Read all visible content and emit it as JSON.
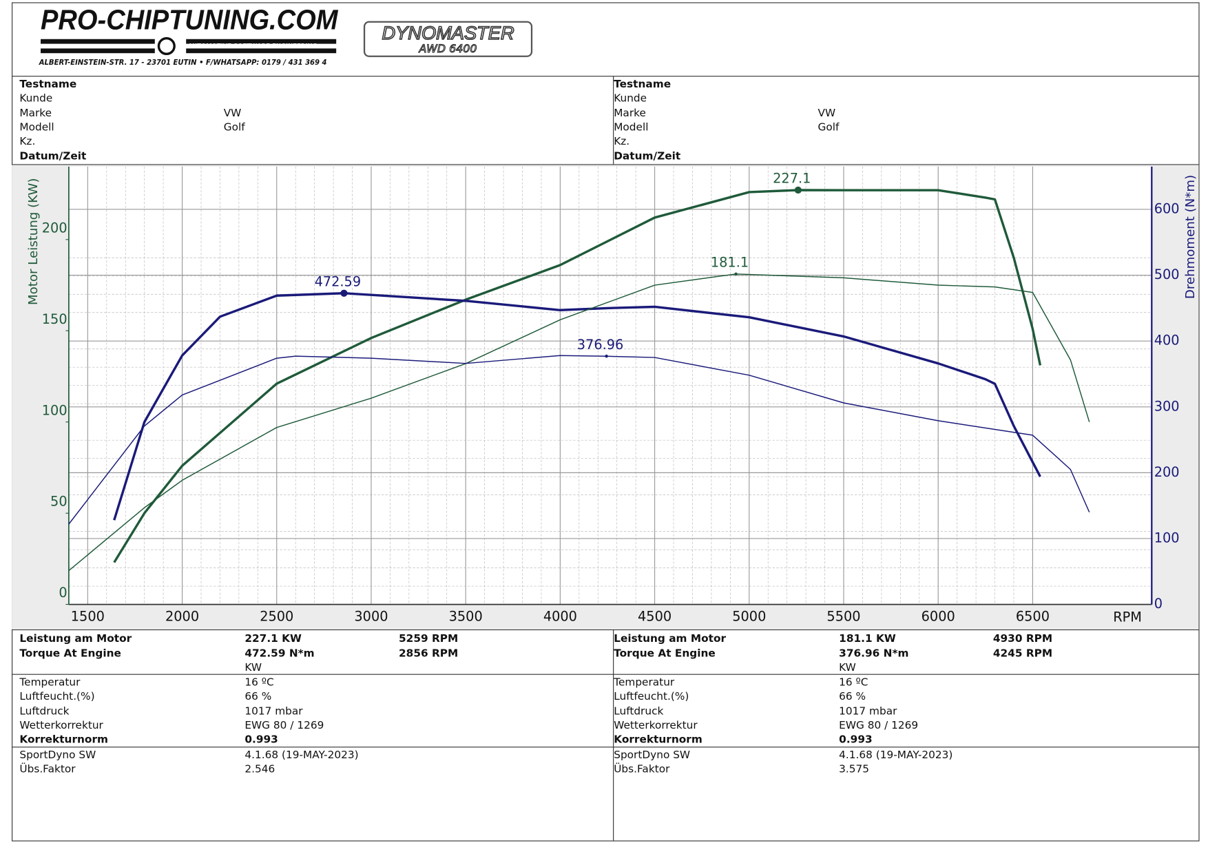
{
  "header": {
    "logo": "PRO-CHIPTUNING.COM",
    "tagline": "AUTOMOTIVE SOFTWARE ENGINEERING",
    "address": "ALBERT-EINSTEIN-STR. 17 - 23701 EUTIN • F/WHATSAPP: 0179 / 431 369 4",
    "brand": "DYNOMASTER",
    "model": "AWD 6400"
  },
  "runs": [
    {
      "info": [
        {
          "label": "Testname"
        },
        {
          "label": "Kunde"
        },
        {
          "label": "Marke",
          "value": "VW"
        },
        {
          "label": "Modell",
          "value": "Golf"
        },
        {
          "label": "Kz."
        },
        {
          "label": "Datum/Zeit"
        }
      ],
      "results": [
        {
          "label": "Leistung am Motor",
          "value": "227.1 KW",
          "rpm": "5259 RPM"
        },
        {
          "label": "Torque At Engine",
          "value": "472.59 N*m",
          "rpm": "2856 RPM"
        },
        {
          "value": "KW"
        }
      ],
      "conditions": [
        {
          "label": "Temperatur",
          "value": "16 ºC"
        },
        {
          "label": "Luftfeucht.(%)",
          "value": "66 %"
        },
        {
          "label": "Luftdruck",
          "value": "1017 mbar"
        },
        {
          "label": "Wetterkorrektur",
          "value": "EWG 80 / 1269"
        },
        {
          "label": "Korrekturnorm",
          "value": "0.993"
        }
      ],
      "software": [
        {
          "label": "SportDyno SW",
          "value": "4.1.68 (19-MAY-2023)"
        },
        {
          "label": "Übs.Faktor",
          "value": "2.546"
        }
      ]
    },
    {
      "info": [
        {
          "label": "Testname"
        },
        {
          "label": "Kunde"
        },
        {
          "label": "Marke",
          "value": "VW"
        },
        {
          "label": "Modell",
          "value": "Golf"
        },
        {
          "label": "Kz."
        },
        {
          "label": "Datum/Zeit"
        }
      ],
      "results": [
        {
          "label": "Leistung am Motor",
          "value": "181.1 KW",
          "rpm": "4930 RPM"
        },
        {
          "label": "Torque At Engine",
          "value": "376.96 N*m",
          "rpm": "4245 RPM"
        },
        {
          "value": "KW"
        }
      ],
      "conditions": [
        {
          "label": "Temperatur",
          "value": "16 ºC"
        },
        {
          "label": "Luftfeucht.(%)",
          "value": "66 %"
        },
        {
          "label": "Luftdruck",
          "value": "1017 mbar"
        },
        {
          "label": "Wetterkorrektur",
          "value": "EWG 80 / 1269"
        },
        {
          "label": "Korrekturnorm",
          "value": "0.993"
        }
      ],
      "software": [
        {
          "label": "SportDyno SW",
          "value": "4.1.68 (19-MAY-2023)"
        },
        {
          "label": "Übs.Faktor",
          "value": "3.575"
        }
      ]
    }
  ],
  "chart_data": {
    "type": "line",
    "x_label": "RPM",
    "y_label": "Motor Leistung (KW)",
    "y2_label": "Drehmoment (N*m)",
    "xlim": [
      1400,
      7130
    ],
    "xticks": [
      1500,
      2000,
      2500,
      3000,
      3500,
      4000,
      4500,
      5000,
      5500,
      6000,
      6500
    ],
    "ylim": [
      0,
      240
    ],
    "yticks": [
      0,
      50,
      100,
      150,
      200
    ],
    "y2lim": [
      0,
      665
    ],
    "y2ticks": [
      0,
      100,
      200,
      300,
      400,
      500,
      600
    ],
    "grid": true,
    "y_color": "#1f5a3a",
    "y2_color": "#1a1a7a",
    "series": [
      {
        "color": "#1f5a3a",
        "axis": "y",
        "x": [
          1640,
          1800,
          2000,
          2500,
          3000,
          3500,
          4000,
          4500,
          5000,
          5259,
          5500,
          6000,
          6250,
          6300,
          6400,
          6500,
          6540
        ],
        "values": [
          23,
          50,
          76,
          121,
          146,
          167,
          186,
          212,
          226,
          227.1,
          227,
          227,
          223,
          222,
          190,
          151,
          131
        ]
      },
      {
        "color": "#1a1a7a",
        "axis": "y2",
        "x": [
          1640,
          1800,
          2000,
          2200,
          2500,
          2856,
          3000,
          3500,
          4000,
          4250,
          4500,
          5000,
          5500,
          6000,
          6250,
          6300,
          6400,
          6540
        ],
        "values": [
          128,
          277,
          378,
          437,
          469,
          472.59,
          470,
          461,
          447,
          450,
          452,
          436,
          407,
          366,
          342,
          335,
          271,
          194
        ]
      },
      {
        "color": "#1f5a3a",
        "axis": "y",
        "x": [
          1400,
          1800,
          2000,
          2500,
          3000,
          3500,
          4000,
          4500,
          4930,
          5500,
          6000,
          6300,
          6500,
          6700,
          6800
        ],
        "values": [
          18.5,
          53,
          68,
          97,
          113,
          132,
          156,
          175,
          181.1,
          179,
          175,
          174,
          171,
          134,
          100
        ]
      },
      {
        "color": "#1a1a7a",
        "axis": "y2",
        "x": [
          1400,
          1800,
          2000,
          2500,
          2600,
          3000,
          3500,
          4000,
          4245,
          4500,
          5000,
          5500,
          6000,
          6500,
          6700,
          6800
        ],
        "values": [
          122,
          271,
          318,
          374,
          377,
          374,
          366,
          378,
          376.96,
          375,
          348,
          306,
          279,
          257,
          205,
          140
        ]
      }
    ],
    "annotations": [
      {
        "x": 5259,
        "y": 227.1,
        "label": "227.1",
        "axis": "y",
        "color": "#1f5a3a"
      },
      {
        "x": 2856,
        "y": 472.59,
        "label": "472.59",
        "axis": "y2",
        "color": "#1a1a7a"
      },
      {
        "x": 4930,
        "y": 181.1,
        "label": "181.1",
        "axis": "y",
        "color": "#1f5a3a"
      },
      {
        "x": 4245,
        "y": 376.96,
        "label": "376.96",
        "axis": "y2",
        "color": "#1a1a7a"
      }
    ]
  }
}
